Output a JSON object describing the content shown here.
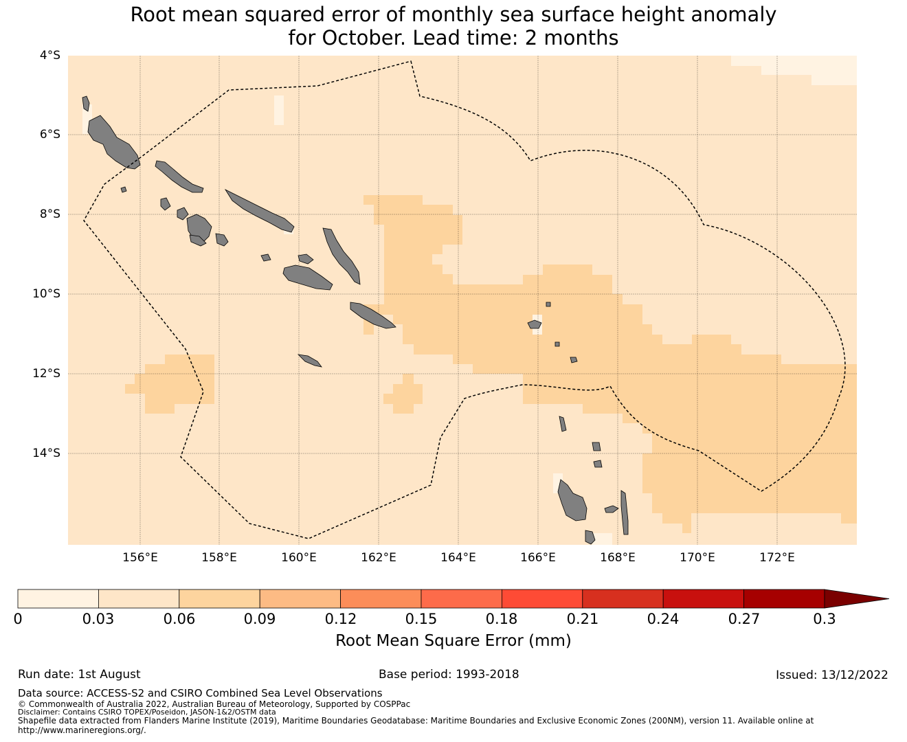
{
  "title": {
    "line1": "Root mean squared error of monthly sea surface height anomaly",
    "line2": "for October. Lead time: 2 months"
  },
  "map": {
    "lat_ticks": [
      "4°S",
      "6°S",
      "8°S",
      "10°S",
      "12°S",
      "14°S"
    ],
    "lon_ticks": [
      "156°E",
      "158°E",
      "160°E",
      "162°E",
      "164°E",
      "166°E",
      "168°E",
      "170°E",
      "172°E"
    ],
    "extent": {
      "lon_min": 154.2,
      "lon_max": 174.0,
      "lat_min": -16.3,
      "lat_max": -4.0
    },
    "colors": {
      "bin_0_003": "#fff3e2",
      "bin_003_006": "#fee6c8",
      "bin_006_009": "#fdd49e",
      "land": "#808080",
      "eez_boundary": "#000000"
    }
  },
  "colorbar": {
    "ticks": [
      "0",
      "0.03",
      "0.06",
      "0.09",
      "0.12",
      "0.15",
      "0.18",
      "0.21",
      "0.24",
      "0.27",
      "0.3"
    ],
    "colors": [
      "#fff3e2",
      "#fee6c8",
      "#fdd49e",
      "#fdbb84",
      "#fc8d59",
      "#fd6b4a",
      "#fe4b35",
      "#d7301f",
      "#c8100e",
      "#a60000",
      "#7a0000"
    ],
    "label": "Root Mean Square Error (mm)",
    "extend": "max"
  },
  "footer": {
    "run_date": "Run date: 1st August",
    "base_period": "Base period: 1993-2018",
    "issued": "Issued: 13/12/2022",
    "data_source": "Data source: ACCESS-S2 and CSIRO Combined Sea Level Observations",
    "copyright": "© Commonwealth of Australia 2022, Australian Bureau of Meteorology, Supported by COSPPac",
    "disclaimer": "Disclaimer: Contains CSIRO TOPEX/Poseidon, JASON-1&2/OSTM data",
    "shapefile_line1": "Shapefile data extracted from Flanders Marine Institute (2019), Maritime Boundaries Geodatabase: Maritime Boundaries and Exclusive Economic Zones (200NM), version 11. Available online at",
    "shapefile_line2": "http://www.marineregions.org/."
  }
}
